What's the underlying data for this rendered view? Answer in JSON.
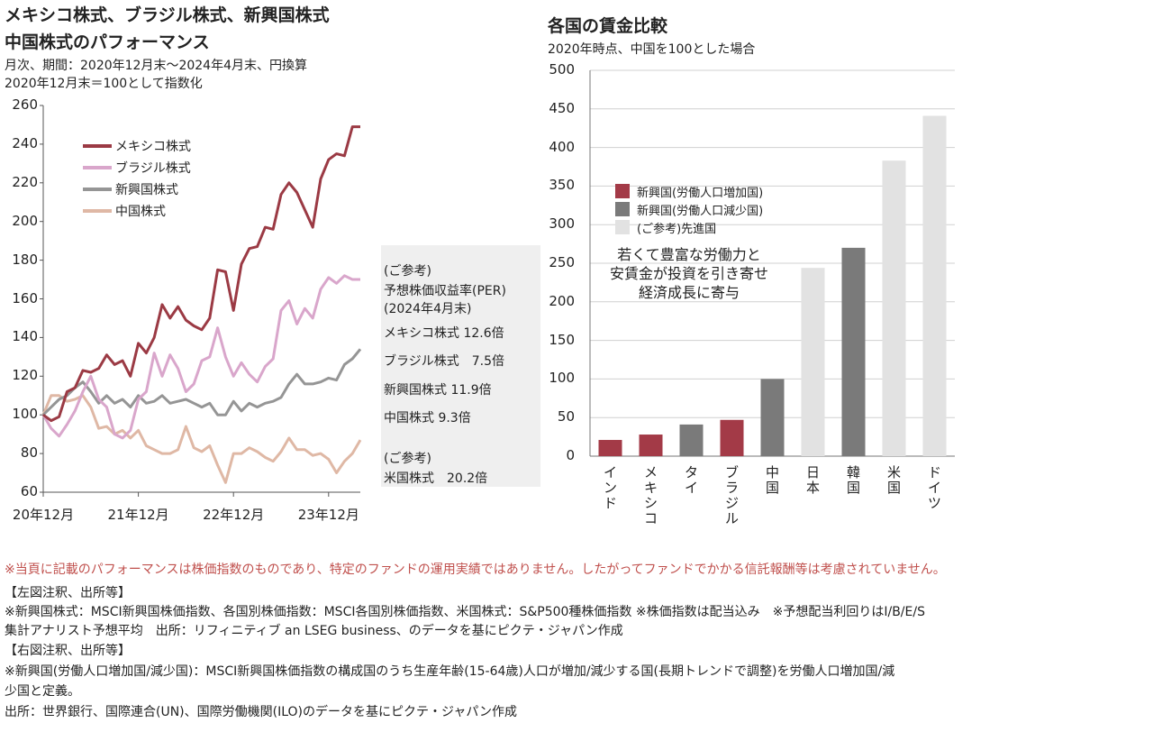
{
  "left": {
    "title1": "メキシコ株式、ブラジル株式、新興国株式",
    "title2": "中国株式のパフォーマンス",
    "sub1": "月次、期間：2020年12月末〜2024年4月末、円換算",
    "sub2": "2020年12月末＝100として指数化"
  },
  "per_box": {
    "l1": "(ご参考)",
    "l2": "予想株価収益率(PER)",
    "l3": "(2024年4月末)",
    "mexico": "メキシコ株式 12.6倍",
    "brazil": "ブラジル株式　7.5倍",
    "em": "新興国株式 11.9倍",
    "china": "中国株式 9.3倍",
    "l4": "(ご参考)",
    "us": "米国株式　20.2倍"
  },
  "right": {
    "title": "各国の賃金比較",
    "sub": "2020年時点、中国を100とした場合",
    "annotation": [
      "若くて豊富な労働力と",
      "安賃金が投資を引き寄せ",
      "経済成長に寄与"
    ]
  },
  "notes": {
    "disclaimer": "※当頁に記載のパフォーマンスは株価指数のものであり、特定のファンドの運用実績ではありません。したがってファンドでかかる信託報酬等は考慮されていません。",
    "left_head": "【左図注釈、出所等】",
    "left_1": "※新興国株式：MSCI新興国株価指数、各国別株価指数：MSCI各国別株価指数、米国株式：S&P500種株価指数 ※株価指数は配当込み　※予想配当利回りはI/B/E/S",
    "left_2": "集計アナリスト予想平均　出所：リフィニティブ an LSEG business、のデータを基にピクテ・ジャパン作成",
    "right_head": "【右図注釈、出所等】",
    "right_1": "※新興国(労働人口増加国/減少国)：MSCI新興国株価指数の構成国のうち生産年齢(15-64歳)人口が増加/減少する国(長期トレンドで調整)を労働人口増加国/減",
    "right_2": "少国と定義。",
    "right_3": "出所：世界銀行、国際連合(UN)、国際労働機関(ILO)のデータを基にピクテ・ジャパン作成"
  },
  "colors": {
    "mexico": "#9b3a44",
    "brazil": "#d9a6cb",
    "em": "#959595",
    "china": "#dfb8a5",
    "bar_increase": "#a33a47",
    "bar_decrease": "#7a7a7a",
    "bar_developed": "#e2e2e2",
    "disclaimer": "#c0504d",
    "per_bg": "#efefef"
  },
  "chart_data": [
    {
      "type": "line",
      "ylim": [
        60,
        260
      ],
      "yticks": [
        "260",
        "240",
        "220",
        "200",
        "180",
        "160",
        "140",
        "120",
        "100",
        "80",
        "60"
      ],
      "xticks": [
        "20年12月",
        "21年12月",
        "22年12月",
        "23年12月"
      ],
      "x": [
        "2020-12",
        "2021-01",
        "2021-02",
        "2021-03",
        "2021-04",
        "2021-05",
        "2021-06",
        "2021-07",
        "2021-08",
        "2021-09",
        "2021-10",
        "2021-11",
        "2021-12",
        "2022-01",
        "2022-02",
        "2022-03",
        "2022-04",
        "2022-05",
        "2022-06",
        "2022-07",
        "2022-08",
        "2022-09",
        "2022-10",
        "2022-11",
        "2022-12",
        "2023-01",
        "2023-02",
        "2023-03",
        "2023-04",
        "2023-05",
        "2023-06",
        "2023-07",
        "2023-08",
        "2023-09",
        "2023-10",
        "2023-11",
        "2023-12",
        "2024-01",
        "2024-02",
        "2024-03",
        "2024-04"
      ],
      "series": [
        {
          "name": "メキシコ株式",
          "color_key": "mexico",
          "values": [
            100,
            97,
            99,
            112,
            114,
            123,
            122,
            124,
            131,
            126,
            128,
            120,
            137,
            132,
            140,
            157,
            150,
            156,
            149,
            146,
            144,
            150,
            175,
            174,
            154,
            178,
            186,
            187,
            197,
            196,
            214,
            220,
            215,
            206,
            197,
            222,
            232,
            235,
            234,
            249,
            249
          ]
        },
        {
          "name": "ブラジル株式",
          "color_key": "brazil",
          "values": [
            100,
            93,
            89,
            95,
            102,
            112,
            120,
            108,
            104,
            90,
            88,
            92,
            108,
            112,
            132,
            120,
            131,
            124,
            112,
            116,
            128,
            130,
            145,
            130,
            120,
            127,
            121,
            117,
            125,
            129,
            154,
            159,
            147,
            155,
            150,
            165,
            171,
            168,
            172,
            170,
            170
          ]
        },
        {
          "name": "新興国株式",
          "color_key": "em",
          "values": [
            100,
            104,
            108,
            110,
            114,
            117,
            112,
            106,
            110,
            106,
            108,
            104,
            110,
            106,
            107,
            110,
            106,
            107,
            108,
            106,
            104,
            106,
            100,
            100,
            107,
            102,
            106,
            104,
            106,
            107,
            109,
            116,
            121,
            116,
            116,
            117,
            119,
            118,
            126,
            129,
            134
          ]
        },
        {
          "name": "中国株式",
          "color_key": "china",
          "values": [
            100,
            110,
            110,
            107,
            108,
            110,
            104,
            93,
            94,
            90,
            92,
            88,
            92,
            84,
            82,
            80,
            80,
            82,
            94,
            83,
            81,
            84,
            74,
            65,
            80,
            80,
            83,
            81,
            78,
            76,
            81,
            88,
            82,
            82,
            79,
            80,
            77,
            70,
            76,
            80,
            87
          ]
        }
      ]
    },
    {
      "type": "bar",
      "ylim": [
        0,
        500
      ],
      "yticks": [
        "500",
        "450",
        "400",
        "350",
        "300",
        "250",
        "200",
        "150",
        "100",
        "50",
        "0"
      ],
      "categories": [
        "インド",
        "メキシコ",
        "タイ",
        "ブラジル",
        "中国",
        "日本",
        "韓国",
        "米国",
        "ドイツ"
      ],
      "values": [
        21,
        28,
        41,
        47,
        100,
        244,
        270,
        383,
        441
      ],
      "groups": [
        "increase",
        "increase",
        "decrease",
        "increase",
        "decrease",
        "developed",
        "decrease",
        "developed",
        "developed"
      ],
      "legend": [
        {
          "key": "increase",
          "label": "新興国(労働人口増加国)"
        },
        {
          "key": "decrease",
          "label": "新興国(労働人口減少国)"
        },
        {
          "key": "developed",
          "label": "(ご参考)先進国"
        }
      ]
    }
  ]
}
